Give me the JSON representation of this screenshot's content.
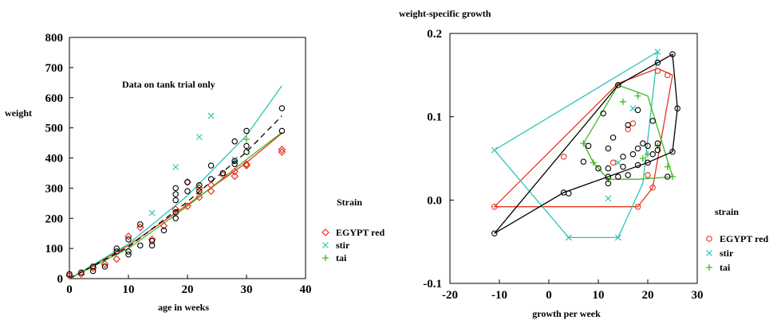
{
  "chart_data": [
    {
      "type": "scatter",
      "xlabel": "age in weeks",
      "ylabel": "weight",
      "annotation": "Data on tank trial only",
      "xlim": [
        0,
        40
      ],
      "ylim": [
        0,
        800
      ],
      "xticks": [
        "0",
        "10",
        "20",
        "30",
        "40"
      ],
      "yticks": [
        "0",
        "100",
        "200",
        "300",
        "400",
        "500",
        "600",
        "700",
        "800"
      ],
      "legend_title": "Strain",
      "legend_placement": "right",
      "series": [
        {
          "name": "EGYPT red",
          "marker": "diamond",
          "color": "#e8321e",
          "points": [
            [
              0,
              10
            ],
            [
              2,
              15
            ],
            [
              4,
              35
            ],
            [
              6,
              48
            ],
            [
              8,
              65
            ],
            [
              10,
              140
            ],
            [
              12,
              170
            ],
            [
              14,
              130
            ],
            [
              16,
              175
            ],
            [
              18,
              230
            ],
            [
              20,
              240
            ],
            [
              20,
              320
            ],
            [
              22,
              270
            ],
            [
              22,
              300
            ],
            [
              24,
              290
            ],
            [
              24,
              310
            ],
            [
              26,
              345
            ],
            [
              28,
              340
            ],
            [
              28,
              355
            ],
            [
              30,
              380
            ],
            [
              30,
              375
            ],
            [
              36,
              420
            ],
            [
              36,
              428
            ]
          ],
          "fit": [
            [
              0,
              0
            ],
            [
              10,
              110
            ],
            [
              20,
              245
            ],
            [
              30,
              385
            ],
            [
              36,
              482
            ]
          ]
        },
        {
          "name": "stir",
          "marker": "x",
          "color": "#2ec4b6",
          "points": [
            [
              14,
              218
            ],
            [
              18,
              370
            ],
            [
              22,
              470
            ],
            [
              24,
              540
            ],
            [
              28,
              395
            ]
          ],
          "fit": [
            [
              0,
              0
            ],
            [
              10,
              115
            ],
            [
              20,
              275
            ],
            [
              30,
              475
            ],
            [
              36,
              640
            ]
          ]
        },
        {
          "name": "tai",
          "marker": "plus",
          "color": "#3dbb1f",
          "points": [
            [
              30,
              462
            ]
          ],
          "fit": [
            [
              0,
              0
            ],
            [
              10,
              100
            ],
            [
              20,
              240
            ],
            [
              30,
              395
            ],
            [
              36,
              485
            ]
          ]
        },
        {
          "name": "",
          "marker": "circle",
          "color": "#000000",
          "points": [
            [
              0,
              15
            ],
            [
              2,
              20
            ],
            [
              4,
              25
            ],
            [
              4,
              40
            ],
            [
              6,
              40
            ],
            [
              8,
              90
            ],
            [
              8,
              100
            ],
            [
              10,
              80
            ],
            [
              10,
              90
            ],
            [
              10,
              130
            ],
            [
              12,
              110
            ],
            [
              12,
              180
            ],
            [
              14,
              110
            ],
            [
              14,
              125
            ],
            [
              16,
              160
            ],
            [
              18,
              200
            ],
            [
              18,
              220
            ],
            [
              18,
              260
            ],
            [
              18,
              280
            ],
            [
              18,
              300
            ],
            [
              20,
              290
            ],
            [
              20,
              320
            ],
            [
              22,
              290
            ],
            [
              22,
              310
            ],
            [
              24,
              330
            ],
            [
              24,
              375
            ],
            [
              26,
              350
            ],
            [
              28,
              380
            ],
            [
              28,
              390
            ],
            [
              28,
              455
            ],
            [
              30,
              420
            ],
            [
              30,
              440
            ],
            [
              30,
              490
            ],
            [
              36,
              490
            ],
            [
              36,
              565
            ]
          ],
          "fit": [
            [
              0,
              0
            ],
            [
              10,
              105
            ],
            [
              20,
              255
            ],
            [
              30,
              420
            ],
            [
              36,
              540
            ]
          ]
        }
      ]
    },
    {
      "type": "scatter",
      "title": "weight-specific growth",
      "xlabel": "growth per week",
      "ylabel": "",
      "xlim": [
        -20,
        30
      ],
      "ylim": [
        -0.1,
        0.2
      ],
      "xticks": [
        "-20",
        "-10",
        "0",
        "10",
        "20",
        "30"
      ],
      "yticks": [
        "-0.1",
        "0.0",
        "0.1",
        "0.2"
      ],
      "legend_title": "strain",
      "legend_placement": "right",
      "series": [
        {
          "name": "EGYPT red",
          "marker": "circle",
          "color": "#e8321e",
          "points": [
            [
              -11,
              -0.008
            ],
            [
              3,
              0.052
            ],
            [
              13,
              0.045
            ],
            [
              16,
              0.085
            ],
            [
              17,
              0.092
            ],
            [
              18,
              -0.008
            ],
            [
              20,
              0.03
            ],
            [
              21,
              0.015
            ],
            [
              22,
              0.155
            ],
            [
              24,
              0.15
            ]
          ],
          "hull": [
            [
              -11,
              -0.008
            ],
            [
              14,
              0.14
            ],
            [
              22,
              0.158
            ],
            [
              25,
              0.15
            ],
            [
              21,
              0.015
            ],
            [
              18,
              -0.008
            ]
          ]
        },
        {
          "name": "stir",
          "marker": "x",
          "color": "#2ec4b6",
          "points": [
            [
              -11,
              0.06
            ],
            [
              4,
              -0.045
            ],
            [
              12,
              0.002
            ],
            [
              14,
              -0.045
            ],
            [
              14,
              0.045
            ],
            [
              17,
              0.11
            ],
            [
              22,
              0.178
            ]
          ],
          "hull": [
            [
              -11,
              0.06
            ],
            [
              22,
              0.178
            ],
            [
              19,
              0.02
            ],
            [
              14,
              -0.045
            ],
            [
              4,
              -0.045
            ]
          ]
        },
        {
          "name": "tai",
          "marker": "plus",
          "color": "#3dbb1f",
          "points": [
            [
              7,
              0.068
            ],
            [
              9,
              0.045
            ],
            [
              12,
              0.025
            ],
            [
              15,
              0.118
            ],
            [
              18,
              0.125
            ],
            [
              19,
              0.05
            ],
            [
              20,
              0.055
            ],
            [
              22,
              0.065
            ],
            [
              24,
              0.04
            ],
            [
              25,
              0.028
            ]
          ],
          "hull": [
            [
              7,
              0.068
            ],
            [
              14,
              0.138
            ],
            [
              20,
              0.125
            ],
            [
              25,
              0.028
            ],
            [
              18,
              0.025
            ],
            [
              12,
              0.025
            ],
            [
              9,
              0.045
            ]
          ]
        },
        {
          "name": "",
          "marker": "circle",
          "color": "#000000",
          "points": [
            [
              -11,
              -0.04
            ],
            [
              3,
              0.009
            ],
            [
              4,
              0.008
            ],
            [
              7,
              0.046
            ],
            [
              8,
              0.065
            ],
            [
              10,
              0.038
            ],
            [
              11,
              0.104
            ],
            [
              12,
              0.02
            ],
            [
              12,
              0.028
            ],
            [
              12,
              0.038
            ],
            [
              12,
              0.062
            ],
            [
              13,
              0.075
            ],
            [
              14,
              0.138
            ],
            [
              14,
              0.028
            ],
            [
              15,
              0.04
            ],
            [
              15,
              0.052
            ],
            [
              16,
              0.03
            ],
            [
              16,
              0.09
            ],
            [
              17,
              0.055
            ],
            [
              18,
              0.042
            ],
            [
              18,
              0.062
            ],
            [
              18,
              0.108
            ],
            [
              19,
              0.068
            ],
            [
              20,
              0.045
            ],
            [
              20,
              0.065
            ],
            [
              21,
              0.095
            ],
            [
              21,
              0.055
            ],
            [
              22,
              0.06
            ],
            [
              22,
              0.068
            ],
            [
              22,
              0.165
            ],
            [
              24,
              0.028
            ],
            [
              25,
              0.058
            ],
            [
              25,
              0.175
            ],
            [
              26,
              0.11
            ]
          ],
          "hull": [
            [
              -11,
              -0.04
            ],
            [
              3,
              0.009
            ],
            [
              20,
              0.045
            ],
            [
              25,
              0.058
            ],
            [
              26,
              0.11
            ],
            [
              25,
              0.175
            ],
            [
              14,
              0.138
            ]
          ]
        }
      ]
    }
  ]
}
